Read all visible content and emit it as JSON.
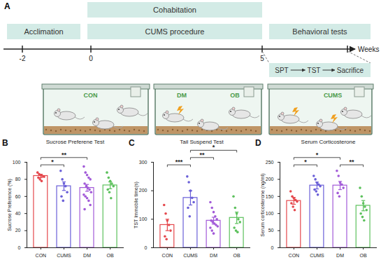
{
  "panel_a": {
    "panel": "A",
    "boxes": [
      "Cohabitation",
      "Acclimation",
      "CUMS procedure",
      "Behavioral tests"
    ],
    "timeline": {
      "ticks": [
        -2,
        0,
        5
      ],
      "label": "Weeks"
    },
    "steps": [
      "SPT",
      "TST",
      "Sacrifice"
    ],
    "cages": [
      {
        "labels": [
          "CON"
        ]
      },
      {
        "labels": [
          "DM",
          "OB"
        ]
      },
      {
        "labels": [
          "CUMS"
        ]
      }
    ]
  },
  "chart_data": [
    {
      "type": "bar",
      "panel": "B",
      "title": "Sucrose Preferene Test",
      "ylabel": "Sucrose Preference (%)",
      "categories": [
        "CON",
        "CUMS",
        "DM",
        "OB"
      ],
      "values": [
        84,
        72,
        70,
        73
      ],
      "errors": [
        2,
        5,
        4,
        4
      ],
      "points": [
        [
          88,
          86,
          85,
          84,
          83,
          82,
          80,
          78
        ],
        [
          90,
          80,
          75,
          72,
          65,
          60,
          55
        ],
        [
          95,
          88,
          85,
          82,
          80,
          75,
          72,
          70,
          68,
          65,
          62,
          60,
          58,
          55,
          50,
          45
        ],
        [
          88,
          82,
          78,
          75,
          72,
          68,
          65,
          58
        ]
      ],
      "colors": [
        "#e5484d",
        "#6a5fd8",
        "#a25ad8",
        "#5cc15c"
      ],
      "ylim": [
        0,
        100
      ],
      "yticks": [
        0,
        20,
        40,
        60,
        80,
        100
      ],
      "significance": [
        {
          "pair": [
            "CON",
            "CUMS"
          ],
          "label": "*"
        },
        {
          "pair": [
            "CON",
            "DM"
          ],
          "label": "**"
        }
      ]
    },
    {
      "type": "bar",
      "panel": "C",
      "title": "Tail Suspend Test",
      "ylabel": "TST Immobile time(s)",
      "categories": [
        "CON",
        "CUMS",
        "DM",
        "OB"
      ],
      "values": [
        80,
        175,
        95,
        105
      ],
      "errors": [
        20,
        25,
        12,
        20
      ],
      "points": [
        [
          150,
          120,
          95,
          80,
          60,
          40,
          30
        ],
        [
          250,
          230,
          200,
          175,
          160,
          140,
          110
        ],
        [
          160,
          140,
          125,
          110,
          100,
          95,
          90,
          85,
          80,
          75,
          70,
          60,
          50
        ],
        [
          180,
          140,
          120,
          100,
          90,
          70,
          60,
          55
        ]
      ],
      "colors": [
        "#e5484d",
        "#6a5fd8",
        "#a25ad8",
        "#5cc15c"
      ],
      "ylim": [
        0,
        300
      ],
      "yticks": [
        0,
        100,
        200,
        300
      ],
      "significance": [
        {
          "pair": [
            "CON",
            "CUMS"
          ],
          "label": "***"
        },
        {
          "pair": [
            "CUMS",
            "DM"
          ],
          "label": "**"
        },
        {
          "pair": [
            "CUMS",
            "OB"
          ],
          "label": "*"
        }
      ]
    },
    {
      "type": "bar",
      "panel": "D",
      "title": "Serum Corticosterone",
      "ylabel": "Serum corticosterone (ng/ml)",
      "categories": [
        "CON",
        "CUMS",
        "DM",
        "OB"
      ],
      "values": [
        137,
        182,
        182,
        123
      ],
      "errors": [
        10,
        10,
        12,
        15
      ],
      "points": [
        [
          165,
          150,
          145,
          140,
          135,
          130,
          120,
          110
        ],
        [
          210,
          200,
          190,
          185,
          180,
          170,
          165,
          155
        ],
        [
          225,
          210,
          190,
          185,
          175,
          160,
          150
        ],
        [
          175,
          150,
          130,
          120,
          110,
          100,
          90,
          80
        ]
      ],
      "colors": [
        "#e5484d",
        "#6a5fd8",
        "#a25ad8",
        "#5cc15c"
      ],
      "ylim": [
        0,
        250
      ],
      "yticks": [
        0,
        50,
        100,
        150,
        200,
        250
      ],
      "significance": [
        {
          "pair": [
            "CON",
            "CUMS"
          ],
          "label": "*"
        },
        {
          "pair": [
            "CON",
            "DM"
          ],
          "label": "*"
        },
        {
          "pair": [
            "DM",
            "OB"
          ],
          "label": "**"
        }
      ]
    }
  ]
}
